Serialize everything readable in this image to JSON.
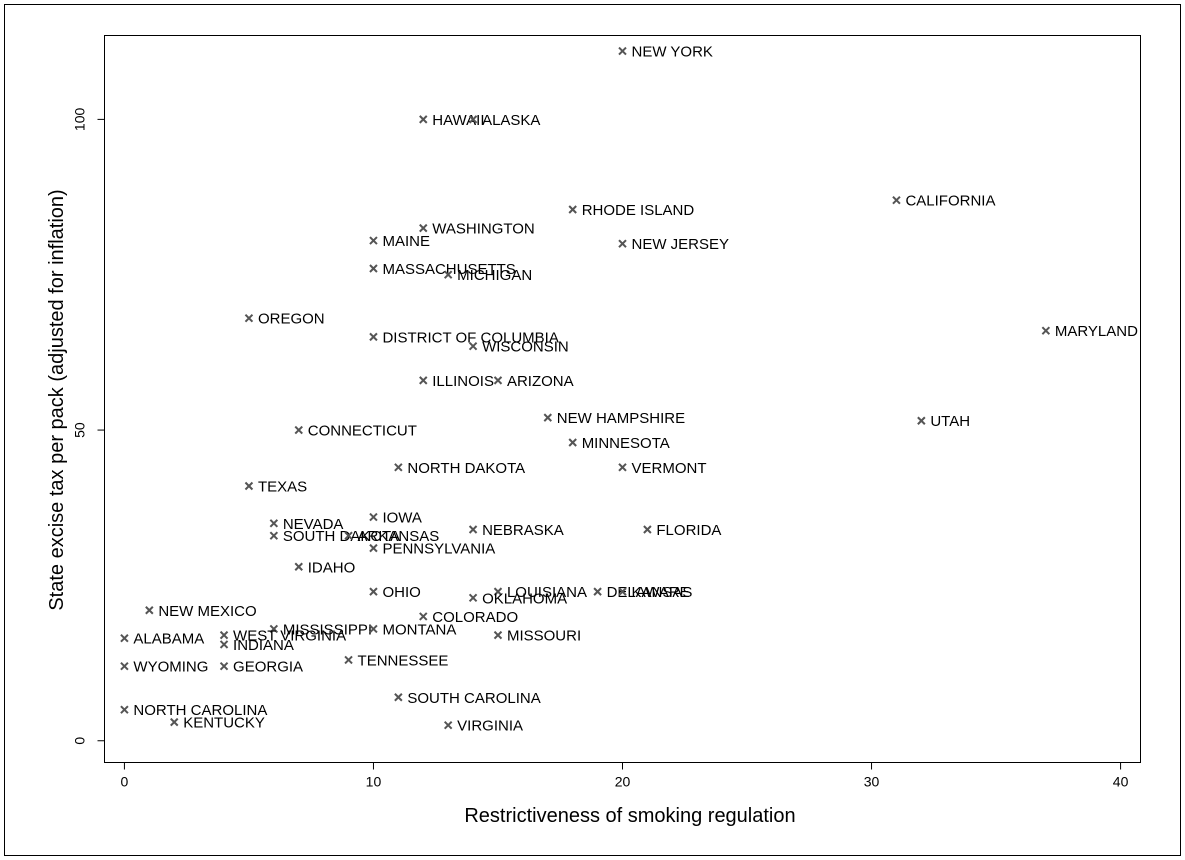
{
  "chart_data": {
    "type": "scatter",
    "xlabel": "Restrictiveness of smoking regulation",
    "ylabel": "State excise tax per pack (adjusted for inflation)",
    "xlim": [
      -0.8,
      40.8
    ],
    "ylim": [
      -3.5,
      113.5
    ],
    "xticks": [
      0,
      10,
      20,
      30,
      40
    ],
    "yticks": [
      0,
      50,
      100
    ],
    "grid": false,
    "marker": "x",
    "marker_color": "#555555",
    "points": [
      {
        "label": "NEW YORK",
        "x": 20,
        "y": 111
      },
      {
        "label": "HAWAII",
        "x": 12,
        "y": 100
      },
      {
        "label": "ALASKA",
        "x": 14,
        "y": 100
      },
      {
        "label": "CALIFORNIA",
        "x": 31,
        "y": 87
      },
      {
        "label": "RHODE ISLAND",
        "x": 18,
        "y": 85.5
      },
      {
        "label": "WASHINGTON",
        "x": 12,
        "y": 82.5
      },
      {
        "label": "MAINE",
        "x": 10,
        "y": 80.5
      },
      {
        "label": "NEW JERSEY",
        "x": 20,
        "y": 80
      },
      {
        "label": "MASSACHUSETTS",
        "x": 10,
        "y": 76
      },
      {
        "label": "MICHIGAN",
        "x": 13,
        "y": 75
      },
      {
        "label": "OREGON",
        "x": 5,
        "y": 68
      },
      {
        "label": "MARYLAND",
        "x": 37,
        "y": 66
      },
      {
        "label": "DISTRICT OF COLUMBIA",
        "x": 10,
        "y": 65
      },
      {
        "label": "WISCONSIN",
        "x": 14,
        "y": 63.5
      },
      {
        "label": "ILLINOIS",
        "x": 12,
        "y": 58
      },
      {
        "label": "ARIZONA",
        "x": 15,
        "y": 58
      },
      {
        "label": "NEW HAMPSHIRE",
        "x": 17,
        "y": 52
      },
      {
        "label": "UTAH",
        "x": 32,
        "y": 51.5
      },
      {
        "label": "CONNECTICUT",
        "x": 7,
        "y": 50
      },
      {
        "label": "MINNESOTA",
        "x": 18,
        "y": 48
      },
      {
        "label": "NORTH DAKOTA",
        "x": 11,
        "y": 44
      },
      {
        "label": "VERMONT",
        "x": 20,
        "y": 44
      },
      {
        "label": "TEXAS",
        "x": 5,
        "y": 41
      },
      {
        "label": "IOWA",
        "x": 10,
        "y": 36
      },
      {
        "label": "NEVADA",
        "x": 6,
        "y": 35
      },
      {
        "label": "NEBRASKA",
        "x": 14,
        "y": 34
      },
      {
        "label": "FLORIDA",
        "x": 21,
        "y": 34
      },
      {
        "label": "SOUTH DAKOTA",
        "x": 6,
        "y": 33
      },
      {
        "label": "ARKANSAS",
        "x": 9,
        "y": 33
      },
      {
        "label": "PENNSYLVANIA",
        "x": 10,
        "y": 31
      },
      {
        "label": "IDAHO",
        "x": 7,
        "y": 28
      },
      {
        "label": "OHIO",
        "x": 10,
        "y": 24
      },
      {
        "label": "LOUISIANA",
        "x": 15,
        "y": 24
      },
      {
        "label": "DELAWARE",
        "x": 19,
        "y": 24
      },
      {
        "label": "KANSAS",
        "x": 20,
        "y": 24
      },
      {
        "label": "OKLAHOMA",
        "x": 14,
        "y": 23
      },
      {
        "label": "NEW MEXICO",
        "x": 1,
        "y": 21
      },
      {
        "label": "COLORADO",
        "x": 12,
        "y": 20
      },
      {
        "label": "MISSISSIPPI",
        "x": 6,
        "y": 18
      },
      {
        "label": "MONTANA",
        "x": 10,
        "y": 18
      },
      {
        "label": "WEST VIRGINIA",
        "x": 4,
        "y": 17
      },
      {
        "label": "MISSOURI",
        "x": 15,
        "y": 17
      },
      {
        "label": "ALABAMA",
        "x": 0,
        "y": 16.5
      },
      {
        "label": "INDIANA",
        "x": 4,
        "y": 15.5
      },
      {
        "label": "TENNESSEE",
        "x": 9,
        "y": 13
      },
      {
        "label": "WYOMING",
        "x": 0,
        "y": 12
      },
      {
        "label": "GEORGIA",
        "x": 4,
        "y": 12
      },
      {
        "label": "SOUTH CAROLINA",
        "x": 11,
        "y": 7
      },
      {
        "label": "NORTH CAROLINA",
        "x": 0,
        "y": 5
      },
      {
        "label": "KENTUCKY",
        "x": 2,
        "y": 3
      },
      {
        "label": "VIRGINIA",
        "x": 13,
        "y": 2.5
      }
    ]
  }
}
